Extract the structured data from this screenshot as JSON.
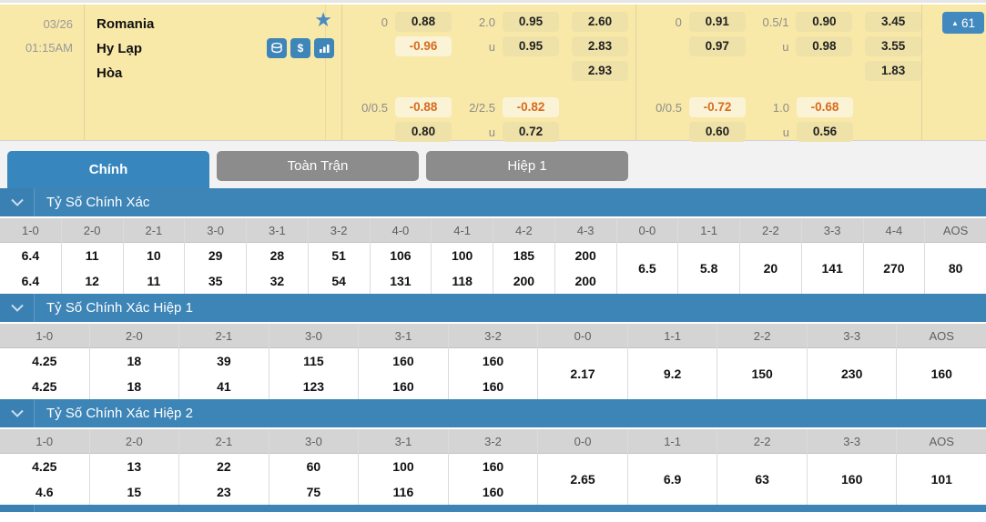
{
  "colors": {
    "row_bg": "#F9E9A8",
    "odds_box_bg": "#EFE2A9",
    "neg_box_bg": "#FBF3D6",
    "neg_text": "#D76B1E",
    "accent_blue": "#3D84B7",
    "tab_active": "#3787BE",
    "tab_inactive": "#8C8C8C",
    "badge_blue": "#4289C0"
  },
  "match": {
    "date": "03/26",
    "time": "01:15AM",
    "home": "Romania",
    "away": "Hy Lạp",
    "draw_label": "Hòa",
    "update_badge": {
      "arrow": "▲",
      "count": "61"
    },
    "dollar_icon_glyph": "$",
    "odds_groups": [
      {
        "top": {
          "hdp_label": "0",
          "hdp_over": "0.88",
          "hdp_under": "-0.96",
          "ou_label": "2.0",
          "ou_over": "0.95",
          "u_label": "u",
          "ou_under": "0.95",
          "x12": [
            "2.60",
            "2.83",
            "2.93"
          ]
        },
        "bottom": {
          "hdp_label": "0/0.5",
          "hdp_over": "-0.88",
          "hdp_under": "0.80",
          "ou_label": "2/2.5",
          "ou_over": "-0.82",
          "u_label": "u",
          "ou_under": "0.72"
        }
      },
      {
        "top": {
          "hdp_label": "0",
          "hdp_over": "0.91",
          "hdp_under": "0.97",
          "ou_label": "0.5/1",
          "ou_over": "0.90",
          "u_label": "u",
          "ou_under": "0.98",
          "x12": [
            "3.45",
            "3.55",
            "1.83"
          ]
        },
        "bottom": {
          "hdp_label": "0/0.5",
          "hdp_over": "-0.72",
          "hdp_under": "0.60",
          "ou_label": "1.0",
          "ou_over": "-0.68",
          "u_label": "u",
          "ou_under": "0.56"
        }
      }
    ]
  },
  "tabs": [
    {
      "label": "Chính",
      "active": true
    },
    {
      "label": "Toàn Trận",
      "active": false
    },
    {
      "label": "Hiệp 1",
      "active": false
    }
  ],
  "sections": [
    {
      "title": "Tỷ Số Chính Xác",
      "columns": [
        {
          "score": "1-0",
          "values": [
            "6.4",
            "6.4"
          ]
        },
        {
          "score": "2-0",
          "values": [
            "11",
            "12"
          ]
        },
        {
          "score": "2-1",
          "values": [
            "10",
            "11"
          ]
        },
        {
          "score": "3-0",
          "values": [
            "29",
            "35"
          ]
        },
        {
          "score": "3-1",
          "values": [
            "28",
            "32"
          ]
        },
        {
          "score": "3-2",
          "values": [
            "51",
            "54"
          ]
        },
        {
          "score": "4-0",
          "values": [
            "106",
            "131"
          ]
        },
        {
          "score": "4-1",
          "values": [
            "100",
            "118"
          ]
        },
        {
          "score": "4-2",
          "values": [
            "185",
            "200"
          ]
        },
        {
          "score": "4-3",
          "values": [
            "200",
            "200"
          ]
        },
        {
          "score": "0-0",
          "values": [
            "6.5"
          ]
        },
        {
          "score": "1-1",
          "values": [
            "5.8"
          ]
        },
        {
          "score": "2-2",
          "values": [
            "20"
          ]
        },
        {
          "score": "3-3",
          "values": [
            "141"
          ]
        },
        {
          "score": "4-4",
          "values": [
            "270"
          ]
        },
        {
          "score": "AOS",
          "values": [
            "80"
          ]
        }
      ]
    },
    {
      "title": "Tỷ Số Chính Xác Hiệp 1",
      "columns": [
        {
          "score": "1-0",
          "values": [
            "4.25",
            "4.25"
          ]
        },
        {
          "score": "2-0",
          "values": [
            "18",
            "18"
          ]
        },
        {
          "score": "2-1",
          "values": [
            "39",
            "41"
          ]
        },
        {
          "score": "3-0",
          "values": [
            "115",
            "123"
          ]
        },
        {
          "score": "3-1",
          "values": [
            "160",
            "160"
          ]
        },
        {
          "score": "3-2",
          "values": [
            "160",
            "160"
          ]
        },
        {
          "score": "0-0",
          "values": [
            "2.17"
          ]
        },
        {
          "score": "1-1",
          "values": [
            "9.2"
          ]
        },
        {
          "score": "2-2",
          "values": [
            "150"
          ]
        },
        {
          "score": "3-3",
          "values": [
            "230"
          ]
        },
        {
          "score": "AOS",
          "values": [
            "160"
          ]
        }
      ]
    },
    {
      "title": "Tỷ Số Chính Xác Hiệp 2",
      "columns": [
        {
          "score": "1-0",
          "values": [
            "4.25",
            "4.6"
          ]
        },
        {
          "score": "2-0",
          "values": [
            "13",
            "15"
          ]
        },
        {
          "score": "2-1",
          "values": [
            "22",
            "23"
          ]
        },
        {
          "score": "3-0",
          "values": [
            "60",
            "75"
          ]
        },
        {
          "score": "3-1",
          "values": [
            "100",
            "116"
          ]
        },
        {
          "score": "3-2",
          "values": [
            "160",
            "160"
          ]
        },
        {
          "score": "0-0",
          "values": [
            "2.65"
          ]
        },
        {
          "score": "1-1",
          "values": [
            "6.9"
          ]
        },
        {
          "score": "2-2",
          "values": [
            "63"
          ]
        },
        {
          "score": "3-3",
          "values": [
            "160"
          ]
        },
        {
          "score": "AOS",
          "values": [
            "101"
          ]
        }
      ]
    }
  ]
}
